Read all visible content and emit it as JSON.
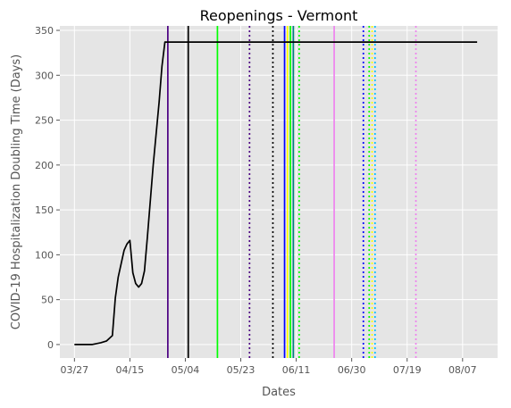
{
  "chart_data": {
    "type": "line",
    "title": "Reopenings - Vermont",
    "xlabel": "Dates",
    "ylabel": "COVID-19 Hospitalization Doubling Time (Days)",
    "grid": true,
    "xlim": [
      "2020-03-22",
      "2020-08-19"
    ],
    "ylim": [
      -15,
      355
    ],
    "x_ticks": [
      {
        "date": "2020-03-27",
        "label": "03/27"
      },
      {
        "date": "2020-04-15",
        "label": "04/15"
      },
      {
        "date": "2020-05-04",
        "label": "05/04"
      },
      {
        "date": "2020-05-23",
        "label": "05/23"
      },
      {
        "date": "2020-06-11",
        "label": "06/11"
      },
      {
        "date": "2020-06-30",
        "label": "06/30"
      },
      {
        "date": "2020-07-19",
        "label": "07/19"
      },
      {
        "date": "2020-08-07",
        "label": "08/07"
      }
    ],
    "y_ticks": [
      0,
      50,
      100,
      150,
      200,
      250,
      300,
      350
    ],
    "series": [
      {
        "color": "#000000",
        "points": [
          [
            "2020-03-27",
            0
          ],
          [
            "2020-04-02",
            0
          ],
          [
            "2020-04-05",
            2
          ],
          [
            "2020-04-07",
            4
          ],
          [
            "2020-04-09",
            10
          ],
          [
            "2020-04-10",
            52
          ],
          [
            "2020-04-11",
            75
          ],
          [
            "2020-04-12",
            90
          ],
          [
            "2020-04-13",
            105
          ],
          [
            "2020-04-14",
            112
          ],
          [
            "2020-04-15",
            116
          ],
          [
            "2020-04-16",
            80
          ],
          [
            "2020-04-17",
            68
          ],
          [
            "2020-04-18",
            64
          ],
          [
            "2020-04-19",
            68
          ],
          [
            "2020-04-20",
            82
          ],
          [
            "2020-04-21",
            120
          ],
          [
            "2020-04-23",
            200
          ],
          [
            "2020-04-25",
            270
          ],
          [
            "2020-04-26",
            310
          ],
          [
            "2020-04-27",
            337
          ],
          [
            "2020-08-12",
            337
          ]
        ]
      }
    ],
    "vertical_lines": [
      {
        "date": "2020-04-28",
        "color": "#4b0082",
        "style": "solid"
      },
      {
        "date": "2020-05-05",
        "color": "#000000",
        "style": "solid"
      },
      {
        "date": "2020-05-15",
        "color": "#00ff00",
        "style": "solid"
      },
      {
        "date": "2020-05-26",
        "color": "#4b0082",
        "style": "dotted"
      },
      {
        "date": "2020-06-03",
        "color": "#000000",
        "style": "dotted"
      },
      {
        "date": "2020-06-07",
        "color": "#0000ff",
        "style": "solid"
      },
      {
        "date": "2020-06-08",
        "color": "#ffff00",
        "style": "solid"
      },
      {
        "date": "2020-06-09",
        "color": "#00ff00",
        "style": "solid"
      },
      {
        "date": "2020-06-10",
        "color": "#008080",
        "style": "solid"
      },
      {
        "date": "2020-06-12",
        "color": "#00ff00",
        "style": "dotted"
      },
      {
        "date": "2020-06-24",
        "color": "#ee82ee",
        "style": "solid"
      },
      {
        "date": "2020-07-04",
        "color": "#0000ff",
        "style": "dotted"
      },
      {
        "date": "2020-07-06",
        "color": "#00ff00",
        "style": "dotted"
      },
      {
        "date": "2020-07-07",
        "color": "#ffff00",
        "style": "dotted"
      },
      {
        "date": "2020-07-08",
        "color": "#00bfff",
        "style": "dotted"
      },
      {
        "date": "2020-07-22",
        "color": "#ee82ee",
        "style": "dotted"
      }
    ]
  }
}
